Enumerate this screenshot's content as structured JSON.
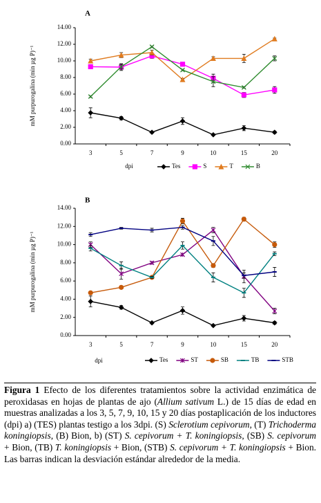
{
  "chart_data": [
    {
      "type": "line",
      "panel": "A",
      "y_label": "mM purpurogalina (min µg P)⁻¹",
      "x_label": "dpi",
      "categories": [
        "3",
        "5",
        "7",
        "9",
        "10",
        "15",
        "20"
      ],
      "ylim": [
        0,
        14
      ],
      "yticks": [
        {
          "value": 0,
          "label": "0.00"
        },
        {
          "value": 2,
          "label": "2.00"
        },
        {
          "value": 4,
          "label": "4.00"
        },
        {
          "value": 6,
          "label": "6.00"
        },
        {
          "value": 8,
          "label": "8.00"
        },
        {
          "value": 10,
          "label": "10.00"
        },
        {
          "value": 12,
          "label": "12.00"
        },
        {
          "value": 14,
          "label": "14.00"
        }
      ],
      "series": [
        {
          "name": "Tes",
          "color": "#000000",
          "marker": "diamond",
          "values": [
            3.75,
            3.1,
            1.4,
            2.75,
            1.1,
            1.9,
            1.4
          ],
          "errors": [
            0.6,
            0.2,
            0.1,
            0.4,
            0.1,
            0.3,
            0.15
          ]
        },
        {
          "name": "S",
          "color": "#ff00ff",
          "marker": "square",
          "values": [
            9.3,
            9.25,
            10.6,
            9.6,
            7.9,
            5.9,
            6.5
          ],
          "errors": [
            0.2,
            0.4,
            0.3,
            0.2,
            0.5,
            0.3,
            0.4
          ]
        },
        {
          "name": "T",
          "color": "#e07b1f",
          "marker": "triangle",
          "values": [
            10.0,
            10.7,
            11.0,
            7.75,
            10.3,
            10.3,
            12.65
          ],
          "errors": [
            0.2,
            0.3,
            0.3,
            0.1,
            0.2,
            0.5,
            0.1
          ]
        },
        {
          "name": "B",
          "color": "#2e8b2e",
          "marker": "x",
          "values": [
            5.7,
            9.3,
            11.7,
            8.9,
            7.5,
            6.8,
            10.3
          ],
          "errors": [
            0.1,
            0.3,
            0.1,
            0.1,
            0.6,
            0.1,
            0.3
          ]
        }
      ]
    },
    {
      "type": "line",
      "panel": "B",
      "y_label": "mM purpurogalina (min µg P)⁻¹",
      "x_label": "dpi",
      "categories": [
        "3",
        "5",
        "7",
        "9",
        "10",
        "15",
        "20"
      ],
      "ylim": [
        0,
        14
      ],
      "yticks": [
        {
          "value": 0,
          "label": "0.00"
        },
        {
          "value": 2,
          "label": "2.00"
        },
        {
          "value": 4,
          "label": "4.00"
        },
        {
          "value": 6,
          "label": "6.00"
        },
        {
          "value": 8,
          "label": "8.00"
        },
        {
          "value": 10,
          "label": "10.00"
        },
        {
          "value": 12,
          "label": "12.00"
        },
        {
          "value": 14,
          "label": "14.00"
        }
      ],
      "series": [
        {
          "name": "Tes",
          "color": "#000000",
          "marker": "diamond",
          "values": [
            3.75,
            3.1,
            1.4,
            2.75,
            1.1,
            1.9,
            1.4
          ],
          "errors": [
            0.6,
            0.2,
            0.1,
            0.4,
            0.1,
            0.3,
            0.15
          ]
        },
        {
          "name": "ST",
          "color": "#800080",
          "marker": "star",
          "values": [
            10.0,
            6.8,
            8.0,
            8.9,
            11.6,
            6.5,
            2.7
          ],
          "errors": [
            0.3,
            0.6,
            0.1,
            0.1,
            0.3,
            0.7,
            0.3
          ]
        },
        {
          "name": "SB",
          "color": "#c65a0a",
          "marker": "circle",
          "values": [
            4.7,
            5.3,
            6.4,
            12.6,
            7.7,
            12.8,
            10.0
          ],
          "errors": [
            0.1,
            0.1,
            0.1,
            0.3,
            0.2,
            0.2,
            0.3
          ]
        },
        {
          "name": "TB",
          "color": "#008080",
          "marker": "dash",
          "values": [
            9.6,
            7.7,
            6.4,
            9.9,
            6.4,
            4.7,
            9.0
          ],
          "errors": [
            0.3,
            0.4,
            0.1,
            0.4,
            0.5,
            0.5,
            0.2
          ]
        },
        {
          "name": "STB",
          "color": "#000080",
          "marker": "dash",
          "values": [
            11.1,
            11.8,
            11.6,
            11.9,
            10.4,
            6.6,
            7.0
          ],
          "errors": [
            0.2,
            0.1,
            0.2,
            0.2,
            0.5,
            0.3,
            0.5
          ]
        }
      ]
    }
  ],
  "caption": [
    {
      "text": "Figura 1",
      "style": "bold"
    },
    {
      "text": " Efecto de los diferentes tratamientos sobre la actividad enzimática de peroxidasas en hojas de plantas de ajo (",
      "style": "normal"
    },
    {
      "text": "Allium sativum",
      "style": "italic"
    },
    {
      "text": " L.) de 15 días de edad en muestras analizadas a los 3, 5, 7, 9, 10, 15 y 20 días postaplicación de los inductores (dpi) a) (TES) plantas testigo a los 3dpi. (S) ",
      "style": "normal"
    },
    {
      "text": "Sclerotium cepivorum",
      "style": "italic"
    },
    {
      "text": ", (T) ",
      "style": "normal"
    },
    {
      "text": "Trichoderma koningiopsis",
      "style": "italic"
    },
    {
      "text": ", (B) Bion, b) (ST) ",
      "style": "normal"
    },
    {
      "text": "S. cepivorum + T. koningiopsis",
      "style": "italic"
    },
    {
      "text": ", (SB) ",
      "style": "normal"
    },
    {
      "text": "S. cepivorum",
      "style": "italic"
    },
    {
      "text": " + Bion, (TB) ",
      "style": "normal"
    },
    {
      "text": "T. koningiopsis",
      "style": "italic"
    },
    {
      "text": " + Bion, (STB) ",
      "style": "normal"
    },
    {
      "text": "S. cepivorum + T. koningiopsis",
      "style": "italic"
    },
    {
      "text": " + Bion. Las barras indican la desviación estándar alrededor de la media.",
      "style": "normal"
    }
  ]
}
